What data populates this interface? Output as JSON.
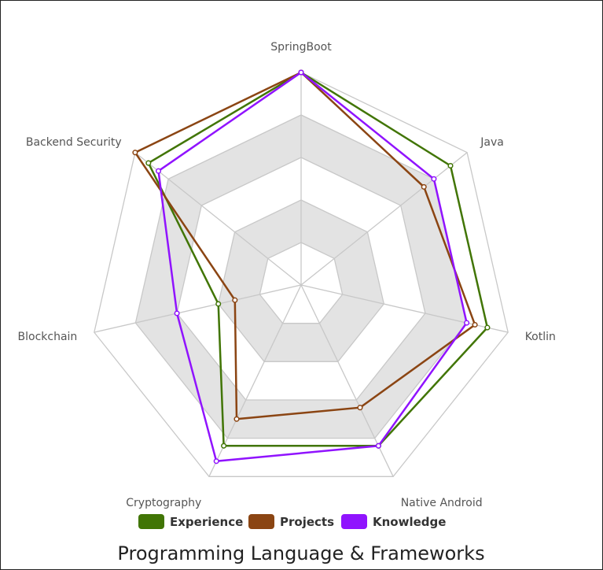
{
  "chart_data": {
    "type": "radar",
    "title": "Programming Language & Frameworks",
    "axes": [
      "SpringBoot",
      "Java",
      "Kotlin",
      "Native Android",
      "Cryptography",
      "Blockchain",
      "Backend Security"
    ],
    "r_range": [
      0,
      5
    ],
    "grid": true,
    "legend_position": "bottom",
    "series": [
      {
        "name": "Experience",
        "color": "#417505",
        "values": [
          5,
          4.5,
          4.5,
          4.2,
          4.2,
          2.0,
          4.6
        ]
      },
      {
        "name": "Projects",
        "color": "#8B4513",
        "values": [
          5,
          3.7,
          4.2,
          3.2,
          3.5,
          1.6,
          5.0
        ]
      },
      {
        "name": "Knowledge",
        "color": "#9013FE",
        "values": [
          5,
          4.0,
          4.0,
          4.2,
          4.6,
          3.0,
          4.3
        ]
      }
    ]
  }
}
